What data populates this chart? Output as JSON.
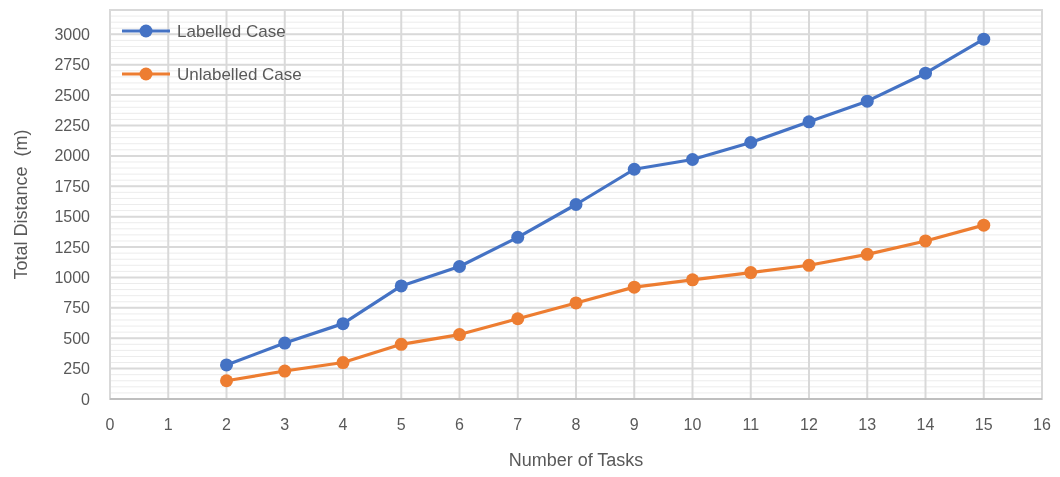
{
  "chart_data": {
    "type": "line",
    "xlabel": "Number of Tasks",
    "ylabel": "Total Distance  (m)",
    "x": [
      2,
      3,
      4,
      5,
      6,
      7,
      8,
      9,
      10,
      11,
      12,
      13,
      14,
      15
    ],
    "series": [
      {
        "name": "Labelled Case",
        "color": "#4472c4",
        "values": [
          280,
          460,
          620,
          930,
          1090,
          1330,
          1600,
          1890,
          1970,
          2110,
          2280,
          2450,
          2680,
          2960
        ]
      },
      {
        "name": "Unlabelled Case",
        "color": "#ed7d31",
        "values": [
          150,
          230,
          300,
          450,
          530,
          660,
          790,
          920,
          980,
          1040,
          1100,
          1190,
          1300,
          1430
        ]
      }
    ],
    "xlim": [
      0,
      16
    ],
    "xticks": [
      0,
      1,
      2,
      3,
      4,
      5,
      6,
      7,
      8,
      9,
      10,
      11,
      12,
      13,
      14,
      15,
      16
    ],
    "ylim": [
      0,
      3200
    ],
    "yticks": [
      0,
      250,
      500,
      750,
      1000,
      1250,
      1500,
      1750,
      2000,
      2250,
      2500,
      2750,
      3000
    ],
    "grid": true,
    "legend": "top left",
    "marker": "circle",
    "line_style": "solid"
  }
}
